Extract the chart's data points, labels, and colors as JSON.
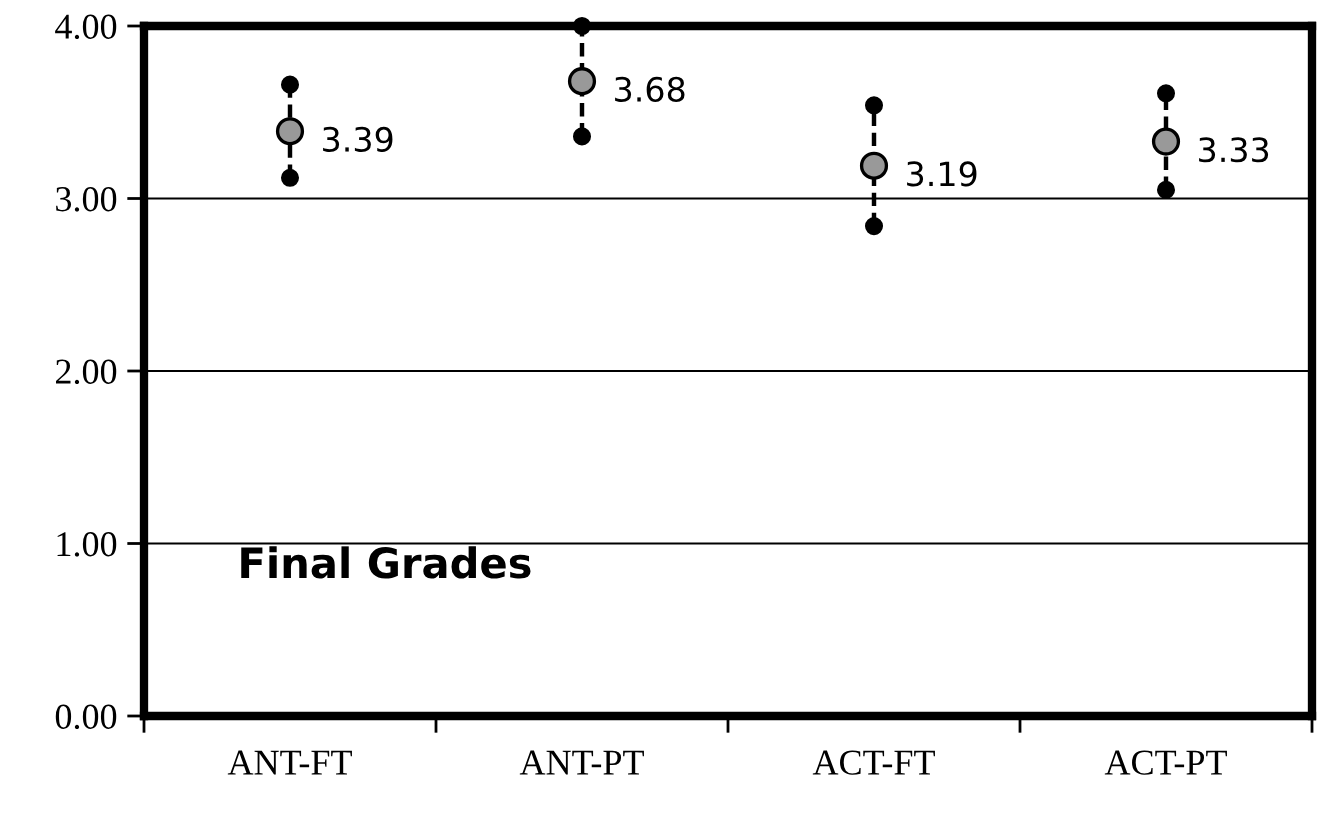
{
  "chart_data": {
    "type": "scatter",
    "categories": [
      "ANT-FT",
      "ANT-PT",
      "ACT-FT",
      "ACT-PT"
    ],
    "series": [
      {
        "color": "#999999",
        "values": [
          3.39,
          3.68,
          3.19,
          3.33
        ],
        "errors": [
          0.27,
          0.32,
          0.35,
          0.28
        ]
      }
    ],
    "data_labels": true,
    "annotations": [
      {
        "text": "Final Grades"
      }
    ],
    "ylim": [
      0,
      4
    ],
    "yticks": [
      {
        "value": 0,
        "label": "0.00"
      },
      {
        "value": 1,
        "label": "1.00"
      },
      {
        "value": 2,
        "label": "2.00"
      },
      {
        "value": 3,
        "label": "3.00"
      },
      {
        "value": 4,
        "label": "4.00"
      }
    ],
    "grid": "y",
    "marker": "circle",
    "line_style": "dashed"
  }
}
